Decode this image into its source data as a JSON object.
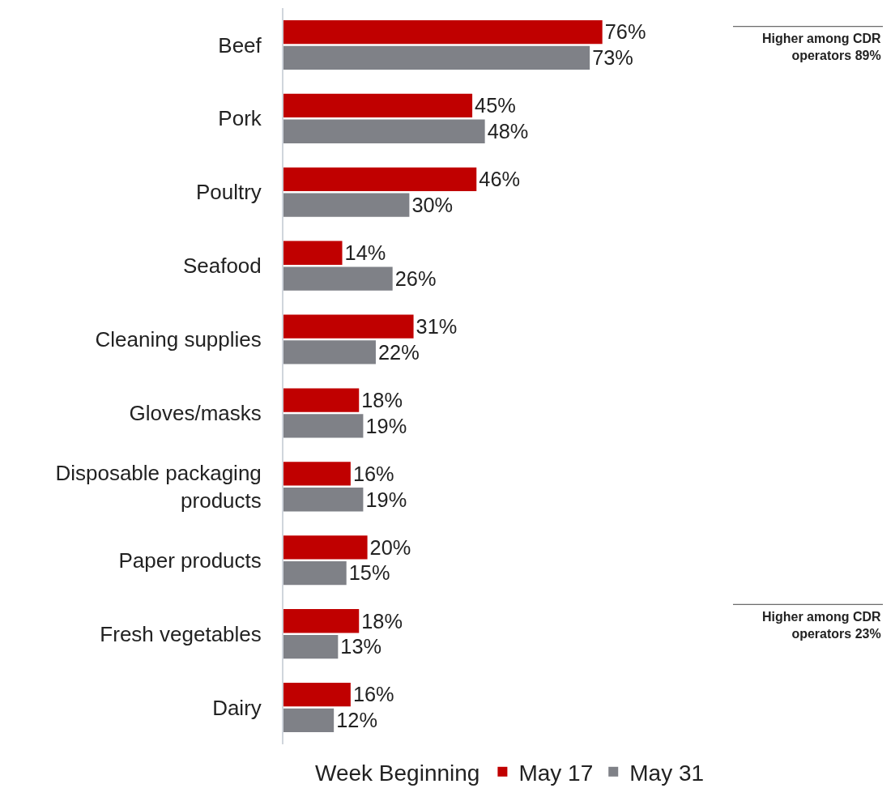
{
  "chart_data": {
    "type": "bar",
    "orientation": "horizontal",
    "categories": [
      "Beef",
      "Pork",
      "Poultry",
      "Seafood",
      "Cleaning supplies",
      "Gloves/masks",
      "Disposable packaging products",
      "Paper products",
      "Fresh vegetables",
      "Dairy"
    ],
    "series": [
      {
        "name": "May 17",
        "color": "#c00000",
        "values": [
          76,
          45,
          46,
          14,
          31,
          18,
          16,
          20,
          18,
          16
        ],
        "value_labels": [
          "76%",
          "45%",
          "46%",
          "14%",
          "31%",
          "18%",
          "16%",
          "20%",
          "18%",
          "16%"
        ]
      },
      {
        "name": "May 31",
        "color": "#7f8187",
        "values": [
          73,
          48,
          30,
          26,
          22,
          19,
          19,
          15,
          13,
          12
        ],
        "value_labels": [
          "73%",
          "48%",
          "30%",
          "26%",
          "22%",
          "19%",
          "19%",
          "15%",
          "13%",
          "12%"
        ]
      }
    ],
    "legend": "bottom",
    "legend_title": "Week Beginning",
    "grid": false,
    "annotations": [
      "Higher among CDR operators 89%",
      "Higher among CDR operators 23%"
    ]
  }
}
